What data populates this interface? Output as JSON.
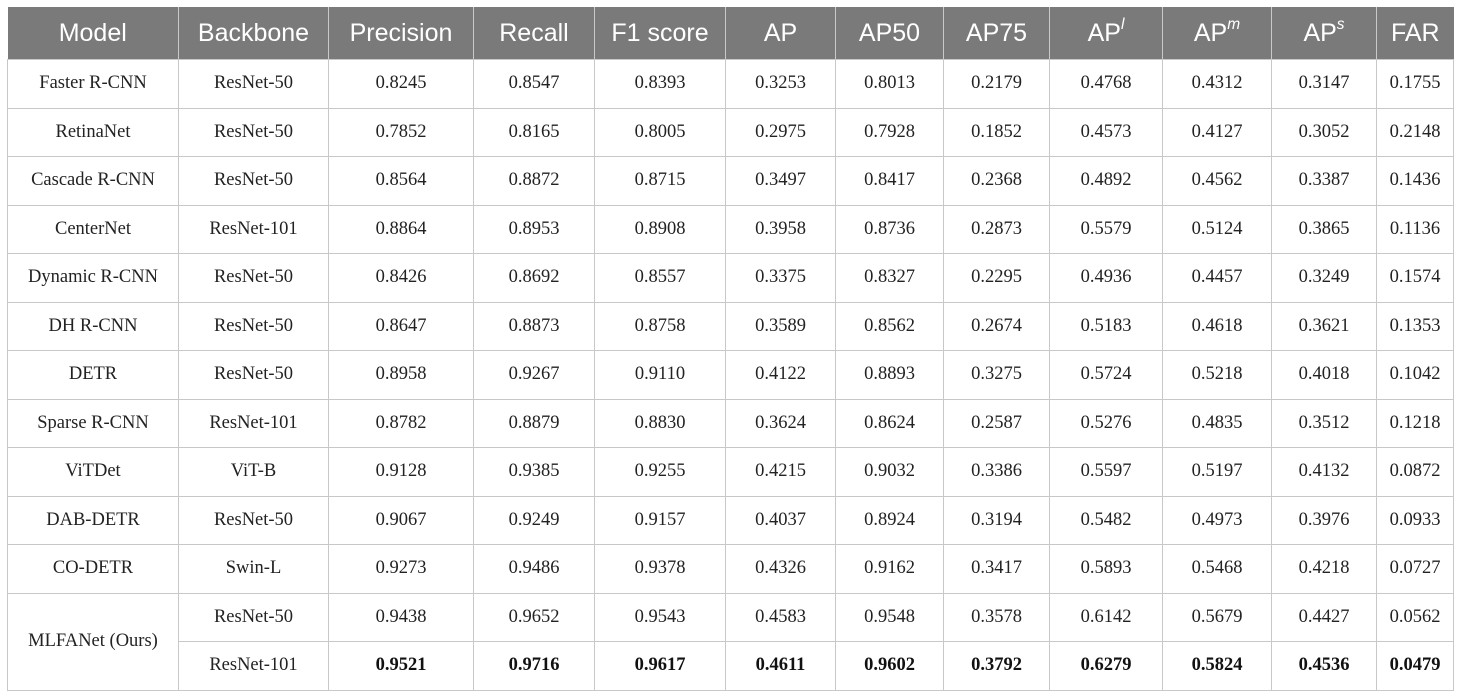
{
  "table": {
    "headers": [
      {
        "text": "Model"
      },
      {
        "text": "Backbone"
      },
      {
        "text": "Precision"
      },
      {
        "text": "Recall"
      },
      {
        "text": "F1 score"
      },
      {
        "text": "AP"
      },
      {
        "text": "AP50"
      },
      {
        "text": "AP75"
      },
      {
        "text": "AP",
        "sup": "l"
      },
      {
        "text": "AP",
        "sup": "m"
      },
      {
        "text": "AP",
        "sup": "s"
      },
      {
        "text": "FAR"
      }
    ],
    "rows": [
      {
        "model": "Faster R-CNN",
        "backbone": "ResNet-50",
        "values": [
          "0.8245",
          "0.8547",
          "0.8393",
          "0.3253",
          "0.8013",
          "0.2179",
          "0.4768",
          "0.4312",
          "0.3147",
          "0.1755"
        ]
      },
      {
        "model": "RetinaNet",
        "backbone": "ResNet-50",
        "values": [
          "0.7852",
          "0.8165",
          "0.8005",
          "0.2975",
          "0.7928",
          "0.1852",
          "0.4573",
          "0.4127",
          "0.3052",
          "0.2148"
        ]
      },
      {
        "model": "Cascade R-CNN",
        "backbone": "ResNet-50",
        "values": [
          "0.8564",
          "0.8872",
          "0.8715",
          "0.3497",
          "0.8417",
          "0.2368",
          "0.4892",
          "0.4562",
          "0.3387",
          "0.1436"
        ]
      },
      {
        "model": "CenterNet",
        "backbone": "ResNet-101",
        "values": [
          "0.8864",
          "0.8953",
          "0.8908",
          "0.3958",
          "0.8736",
          "0.2873",
          "0.5579",
          "0.5124",
          "0.3865",
          "0.1136"
        ]
      },
      {
        "model": "Dynamic R-CNN",
        "backbone": "ResNet-50",
        "values": [
          "0.8426",
          "0.8692",
          "0.8557",
          "0.3375",
          "0.8327",
          "0.2295",
          "0.4936",
          "0.4457",
          "0.3249",
          "0.1574"
        ]
      },
      {
        "model": "DH R-CNN",
        "backbone": "ResNet-50",
        "values": [
          "0.8647",
          "0.8873",
          "0.8758",
          "0.3589",
          "0.8562",
          "0.2674",
          "0.5183",
          "0.4618",
          "0.3621",
          "0.1353"
        ]
      },
      {
        "model": "DETR",
        "backbone": "ResNet-50",
        "values": [
          "0.8958",
          "0.9267",
          "0.9110",
          "0.4122",
          "0.8893",
          "0.3275",
          "0.5724",
          "0.5218",
          "0.4018",
          "0.1042"
        ]
      },
      {
        "model": "Sparse R-CNN",
        "backbone": "ResNet-101",
        "values": [
          "0.8782",
          "0.8879",
          "0.8830",
          "0.3624",
          "0.8624",
          "0.2587",
          "0.5276",
          "0.4835",
          "0.3512",
          "0.1218"
        ]
      },
      {
        "model": "ViTDet",
        "backbone": "ViT-B",
        "values": [
          "0.9128",
          "0.9385",
          "0.9255",
          "0.4215",
          "0.9032",
          "0.3386",
          "0.5597",
          "0.5197",
          "0.4132",
          "0.0872"
        ]
      },
      {
        "model": "DAB-DETR",
        "backbone": "ResNet-50",
        "values": [
          "0.9067",
          "0.9249",
          "0.9157",
          "0.4037",
          "0.8924",
          "0.3194",
          "0.5482",
          "0.4973",
          "0.3976",
          "0.0933"
        ]
      },
      {
        "model": "CO-DETR",
        "backbone": "Swin-L",
        "values": [
          "0.9273",
          "0.9486",
          "0.9378",
          "0.4326",
          "0.9162",
          "0.3417",
          "0.5893",
          "0.5468",
          "0.4218",
          "0.0727"
        ]
      },
      {
        "model": "MLFANet (Ours)",
        "backbone": "ResNet-50",
        "values": [
          "0.9438",
          "0.9652",
          "0.9543",
          "0.4583",
          "0.9548",
          "0.3578",
          "0.6142",
          "0.5679",
          "0.4427",
          "0.0562"
        ]
      },
      {
        "model": "",
        "backbone": "ResNet-101",
        "values": [
          "0.9521",
          "0.9716",
          "0.9617",
          "0.4611",
          "0.9602",
          "0.3792",
          "0.6279",
          "0.5824",
          "0.4536",
          "0.0479"
        ],
        "bold": true
      }
    ]
  },
  "colors": {
    "header_bg": "#7a7a7a",
    "header_text": "#ffffff",
    "grid": "#c8c8c8"
  }
}
